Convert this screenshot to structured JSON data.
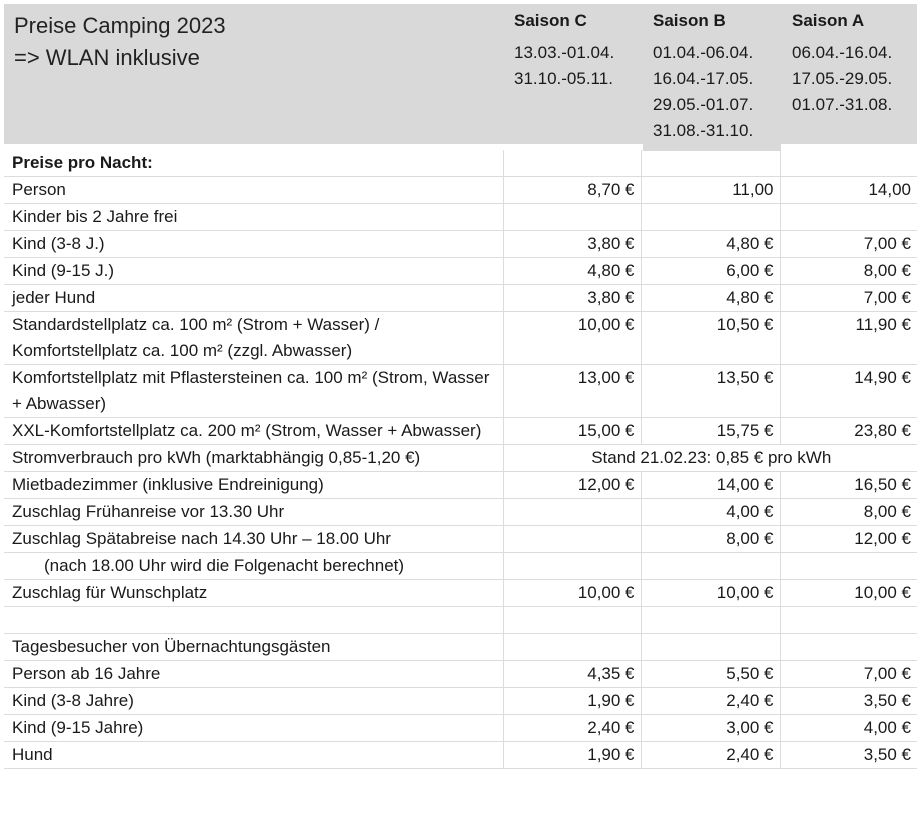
{
  "header": {
    "title": "Preise Camping 2023",
    "subtitle": "=> WLAN inklusive",
    "seasons": [
      {
        "name": "Saison C",
        "dates": [
          "13.03.-01.04.",
          "31.10.-05.11."
        ]
      },
      {
        "name": "Saison B",
        "dates": [
          "01.04.-06.04.",
          "16.04.-17.05.",
          "29.05.-01.07.",
          "31.08.-31.10."
        ]
      },
      {
        "name": "Saison A",
        "dates": [
          "06.04.-16.04.",
          "17.05.-29.05.",
          "01.07.-31.08."
        ]
      }
    ]
  },
  "rows": [
    {
      "label": "Preise pro Nacht:",
      "c": "",
      "b": "",
      "a": ""
    },
    {
      "label": "Person",
      "c": "8,70 €",
      "b": "11,00",
      "a": "14,00"
    },
    {
      "label": "Kinder bis 2 Jahre frei",
      "c": "",
      "b": "",
      "a": ""
    },
    {
      "label": "Kind (3-8 J.)",
      "c": "3,80 €",
      "b": "4,80 €",
      "a": "7,00 €"
    },
    {
      "label": "Kind (9-15 J.)",
      "c": "4,80 €",
      "b": "6,00 €",
      "a": "8,00 €"
    },
    {
      "label": "jeder Hund",
      "c": "3,80 €",
      "b": "4,80 €",
      "a": "7,00 €"
    },
    {
      "label": "Standardstellplatz ca. 100 m² (Strom + Wasser) / Komfortstellplatz ca. 100 m² (zzgl. Abwasser)",
      "c": "10,00 €",
      "b": "10,50 €",
      "a": "11,90 €"
    },
    {
      "label": "Komfortstellplatz mit Pflastersteinen ca. 100 m² (Strom, Wasser + Abwasser)",
      "c": "13,00 €",
      "b": "13,50 €",
      "a": "14,90 €"
    },
    {
      "label": "XXL-Komfortstellplatz ca. 200 m² (Strom, Wasser + Abwasser)",
      "c": "15,00 €",
      "b": "15,75 €",
      "a": "23,80 €"
    },
    {
      "label": "Stromverbrauch pro kWh (marktabhängig 0,85-1,20 €)",
      "merged": "Stand 21.02.23: 0,85 € pro kWh"
    },
    {
      "label": "Mietbadezimmer (inklusive Endreinigung)",
      "c": "12,00 €",
      "b": "14,00 €",
      "a": "16,50 €"
    },
    {
      "label": "Zuschlag Frühanreise vor 13.30 Uhr",
      "c": "",
      "b": "4,00 €",
      "a": "8,00 €"
    },
    {
      "label": "Zuschlag Spätabreise nach 14.30 Uhr – 18.00 Uhr",
      "c": "",
      "b": "8,00 €",
      "a": "12,00 €"
    },
    {
      "label": "(nach 18.00 Uhr wird die Folgenacht berechnet)",
      "c": "",
      "b": "",
      "a": ""
    },
    {
      "label": "Zuschlag für Wunschplatz",
      "c": "10,00 €",
      "b": "10,00 €",
      "a": "10,00 €"
    },
    {
      "label": "",
      "c": "",
      "b": "",
      "a": ""
    },
    {
      "label": "Tagesbesucher von Übernachtungsgästen",
      "c": "",
      "b": "",
      "a": ""
    },
    {
      "label": "Person ab 16 Jahre",
      "c": "4,35 €",
      "b": "5,50 €",
      "a": "7,00 €"
    },
    {
      "label": "Kind (3-8 Jahre)",
      "c": "1,90 €",
      "b": "2,40 €",
      "a": "3,50 €"
    },
    {
      "label": "Kind (9-15 Jahre)",
      "c": "2,40 €",
      "b": "3,00 €",
      "a": "4,00 €"
    },
    {
      "label": "Hund",
      "c": "1,90 €",
      "b": "2,40 €",
      "a": "3,50 €"
    }
  ]
}
